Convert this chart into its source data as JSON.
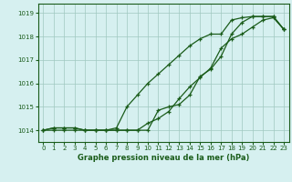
{
  "xlabel": "Graphe pression niveau de la mer (hPa)",
  "background_color": "#d6f0f0",
  "grid_color": "#a0c8c0",
  "line_color": "#1a5c1a",
  "xlim": [
    -0.5,
    23.5
  ],
  "ylim": [
    1013.5,
    1019.4
  ],
  "xticks": [
    0,
    1,
    2,
    3,
    4,
    5,
    6,
    7,
    8,
    9,
    10,
    11,
    12,
    13,
    14,
    15,
    16,
    17,
    18,
    19,
    20,
    21,
    22,
    23
  ],
  "yticks": [
    1014,
    1015,
    1016,
    1017,
    1018,
    1019
  ],
  "line1_x": [
    0,
    1,
    2,
    3,
    4,
    5,
    6,
    7,
    8,
    9,
    10,
    11,
    12,
    13,
    14,
    15,
    16,
    17,
    18,
    19,
    20,
    21,
    22,
    23
  ],
  "line1_y": [
    1014.0,
    1014.1,
    1014.1,
    1014.1,
    1014.0,
    1014.0,
    1014.0,
    1014.1,
    1015.0,
    1015.5,
    1016.0,
    1016.4,
    1016.8,
    1017.2,
    1017.6,
    1017.9,
    1018.1,
    1018.1,
    1018.7,
    1018.8,
    1018.85,
    1018.85,
    1018.85,
    1018.3
  ],
  "line2_x": [
    0,
    1,
    2,
    3,
    4,
    5,
    6,
    7,
    8,
    9,
    10,
    11,
    12,
    13,
    14,
    15,
    16,
    17,
    18,
    19,
    20,
    21,
    22,
    23
  ],
  "line2_y": [
    1014.0,
    1014.1,
    1014.1,
    1014.1,
    1014.0,
    1014.0,
    1014.0,
    1014.0,
    1014.0,
    1014.0,
    1014.0,
    1014.85,
    1015.0,
    1015.1,
    1015.5,
    1016.3,
    1016.6,
    1017.15,
    1018.1,
    1018.6,
    1018.85,
    1018.85,
    1018.85,
    1018.3
  ],
  "line3_x": [
    0,
    1,
    2,
    3,
    4,
    5,
    6,
    7,
    8,
    9,
    10,
    11,
    12,
    13,
    14,
    15,
    16,
    17,
    18,
    19,
    20,
    21,
    22,
    23
  ],
  "line3_y": [
    1014.0,
    1014.0,
    1014.0,
    1014.0,
    1014.0,
    1014.0,
    1014.0,
    1014.0,
    1014.0,
    1014.0,
    1014.3,
    1014.5,
    1014.8,
    1015.35,
    1015.85,
    1016.25,
    1016.65,
    1017.5,
    1017.9,
    1018.1,
    1018.4,
    1018.7,
    1018.8,
    1018.3
  ]
}
